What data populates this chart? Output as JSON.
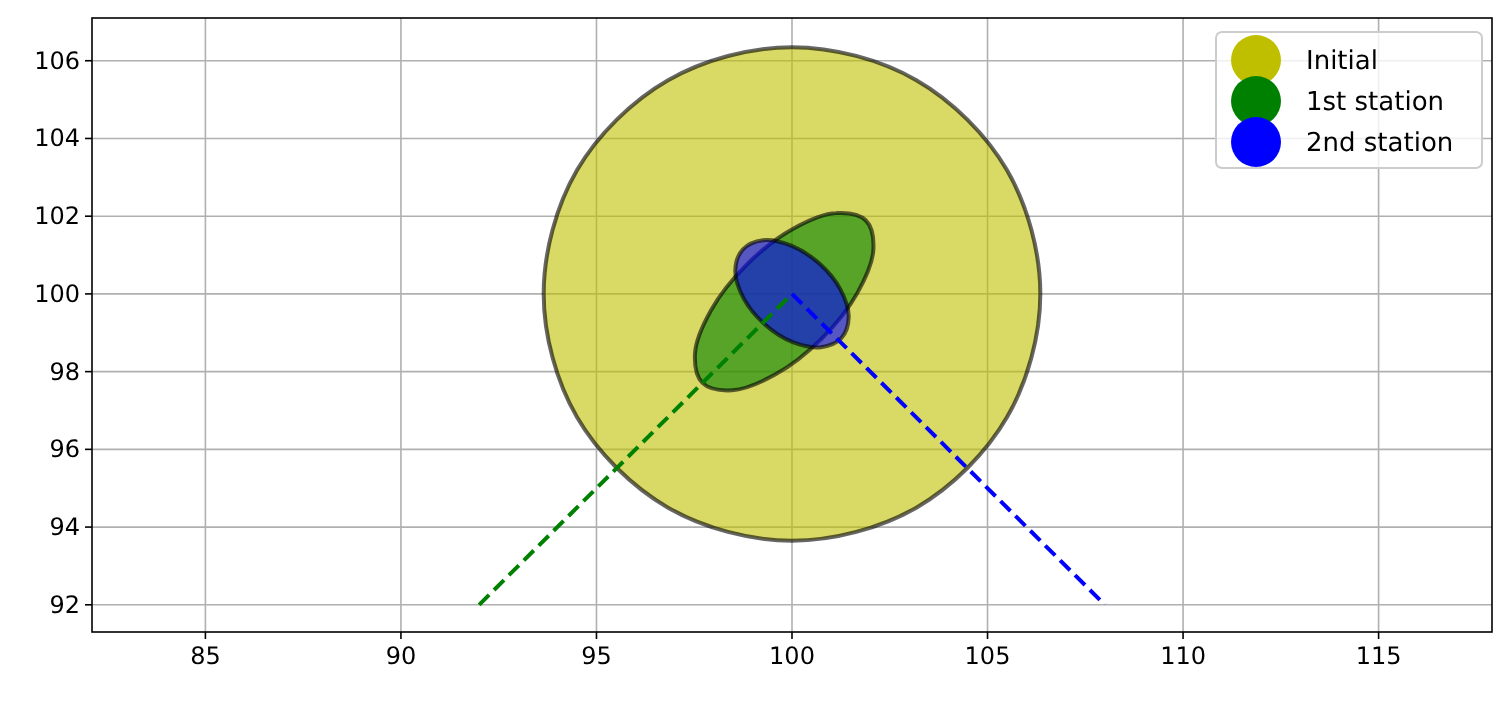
{
  "chart_data": {
    "type": "area",
    "grid": true,
    "legend": "top right",
    "xlim": [
      82.1,
      117.9
    ],
    "ylim": [
      91.3,
      107.1
    ],
    "xticks": [
      85,
      90,
      95,
      100,
      105,
      110,
      115
    ],
    "yticks": [
      92,
      94,
      96,
      98,
      100,
      102,
      104,
      106
    ],
    "series": [
      {
        "name": "Initial",
        "color": "#bfbf00",
        "x": [
          106.35,
          105.5,
          103.18,
          100,
          96.83,
          94.5,
          93.65,
          94.5,
          96.83,
          100,
          103.18,
          105.5
        ],
        "values": [
          100,
          103.18,
          105.5,
          106.35,
          105.5,
          103.18,
          100,
          96.83,
          94.5,
          93.65,
          94.5,
          96.83
        ]
      },
      {
        "name": "1st station",
        "color": "#008000",
        "x": [
          101.89,
          101.13,
          100.02,
          98.85,
          97.93,
          97.52,
          97.71,
          98.47,
          99.58,
          100.76,
          101.67,
          102.08
        ],
        "values": [
          101.89,
          102.08,
          101.67,
          100.76,
          99.58,
          98.47,
          97.71,
          97.52,
          97.93,
          98.85,
          100.02,
          101.13
        ]
      },
      {
        "name": "2nd station",
        "color": "#0000ff",
        "x": [
          101.26,
          101.45,
          101.24,
          100.7,
          99.98,
          99.26,
          98.74,
          98.55,
          98.76,
          99.3,
          100.02,
          100.74
        ],
        "values": [
          98.86,
          99.41,
          100.11,
          100.78,
          101.24,
          101.38,
          101.14,
          100.6,
          99.89,
          99.22,
          98.76,
          98.63
        ]
      },
      {
        "type": "line",
        "line_style": "dashed",
        "color": "#008000",
        "x": [
          92,
          100
        ],
        "values": [
          92,
          100
        ]
      },
      {
        "type": "line",
        "line_style": "dashed",
        "color": "#0000ff",
        "x": [
          100,
          108
        ],
        "values": [
          100,
          92
        ]
      }
    ]
  }
}
